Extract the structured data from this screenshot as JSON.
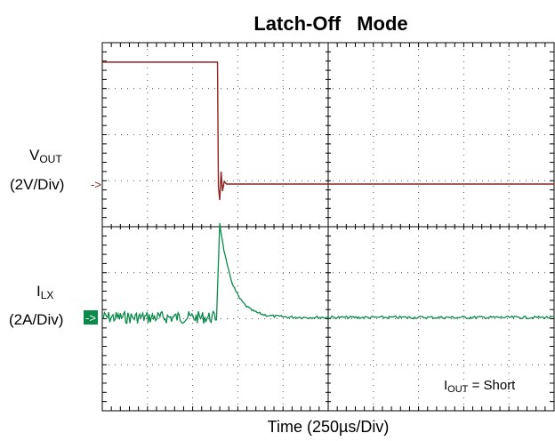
{
  "chart_data": {
    "type": "line",
    "title": "Latch-Off   Mode",
    "title_words": [
      "Latch-Off",
      "Mode"
    ],
    "xlabel": "Time  (250µs/Div)",
    "grid": true,
    "x_divisions": 10,
    "y_divisions": 8,
    "xlim": [
      0,
      10
    ],
    "x_unit": "div",
    "series": [
      {
        "name_main": "V",
        "name_sub": "OUT",
        "scale_label": "(2V/Div)",
        "color": "#8b2323",
        "description_points_div": [
          [
            0,
            2.65
          ],
          [
            2.55,
            2.65
          ],
          [
            2.6,
            0
          ],
          [
            10,
            0
          ]
        ],
        "baseline_div": 0
      },
      {
        "name_main": "I",
        "name_sub": "LX",
        "scale_label": "(2A/Div)",
        "color": "#0a8a4a",
        "baseline_div": 0,
        "spike_peak_div": 2.05,
        "spike_time_div": 2.6
      }
    ],
    "annotation": {
      "main": "I",
      "sub": "OUT",
      "rest": " = Short"
    }
  }
}
